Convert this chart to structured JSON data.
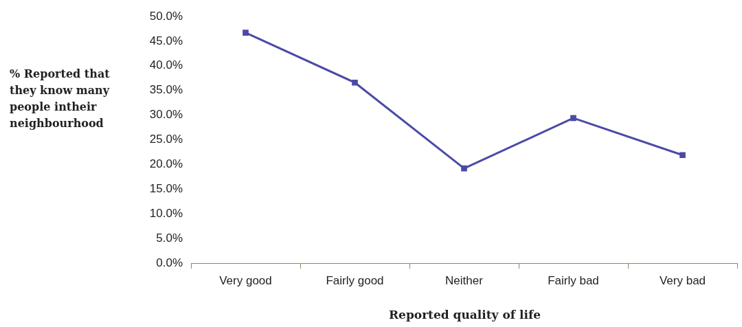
{
  "chart_data": {
    "type": "line",
    "xlabel": "Reported quality of life",
    "ylabel": "% Reported that they know many people intheir neighbourhood",
    "categories": [
      "Very good",
      "Fairly good",
      "Neither",
      "Fairly bad",
      "Very bad"
    ],
    "series": [
      {
        "color": "#4a4aa6",
        "values": [
          46.7,
          36.6,
          19.2,
          29.4,
          21.9
        ]
      }
    ],
    "ylim": [
      0,
      50
    ],
    "yticks": [
      {
        "value": 0,
        "label": "0.0%"
      },
      {
        "value": 5,
        "label": "5.0%"
      },
      {
        "value": 10,
        "label": "10.0%"
      },
      {
        "value": 15,
        "label": "15.0%"
      },
      {
        "value": 20,
        "label": "20.0%"
      },
      {
        "value": 25,
        "label": "25.0%"
      },
      {
        "value": 30,
        "label": "30.0%"
      },
      {
        "value": 35,
        "label": "35.0%"
      },
      {
        "value": 40,
        "label": "40.0%"
      },
      {
        "value": 45,
        "label": "45.0%"
      },
      {
        "value": 50,
        "label": "50.0%"
      }
    ],
    "grid": false,
    "marker": "square",
    "line_style": "solid"
  }
}
